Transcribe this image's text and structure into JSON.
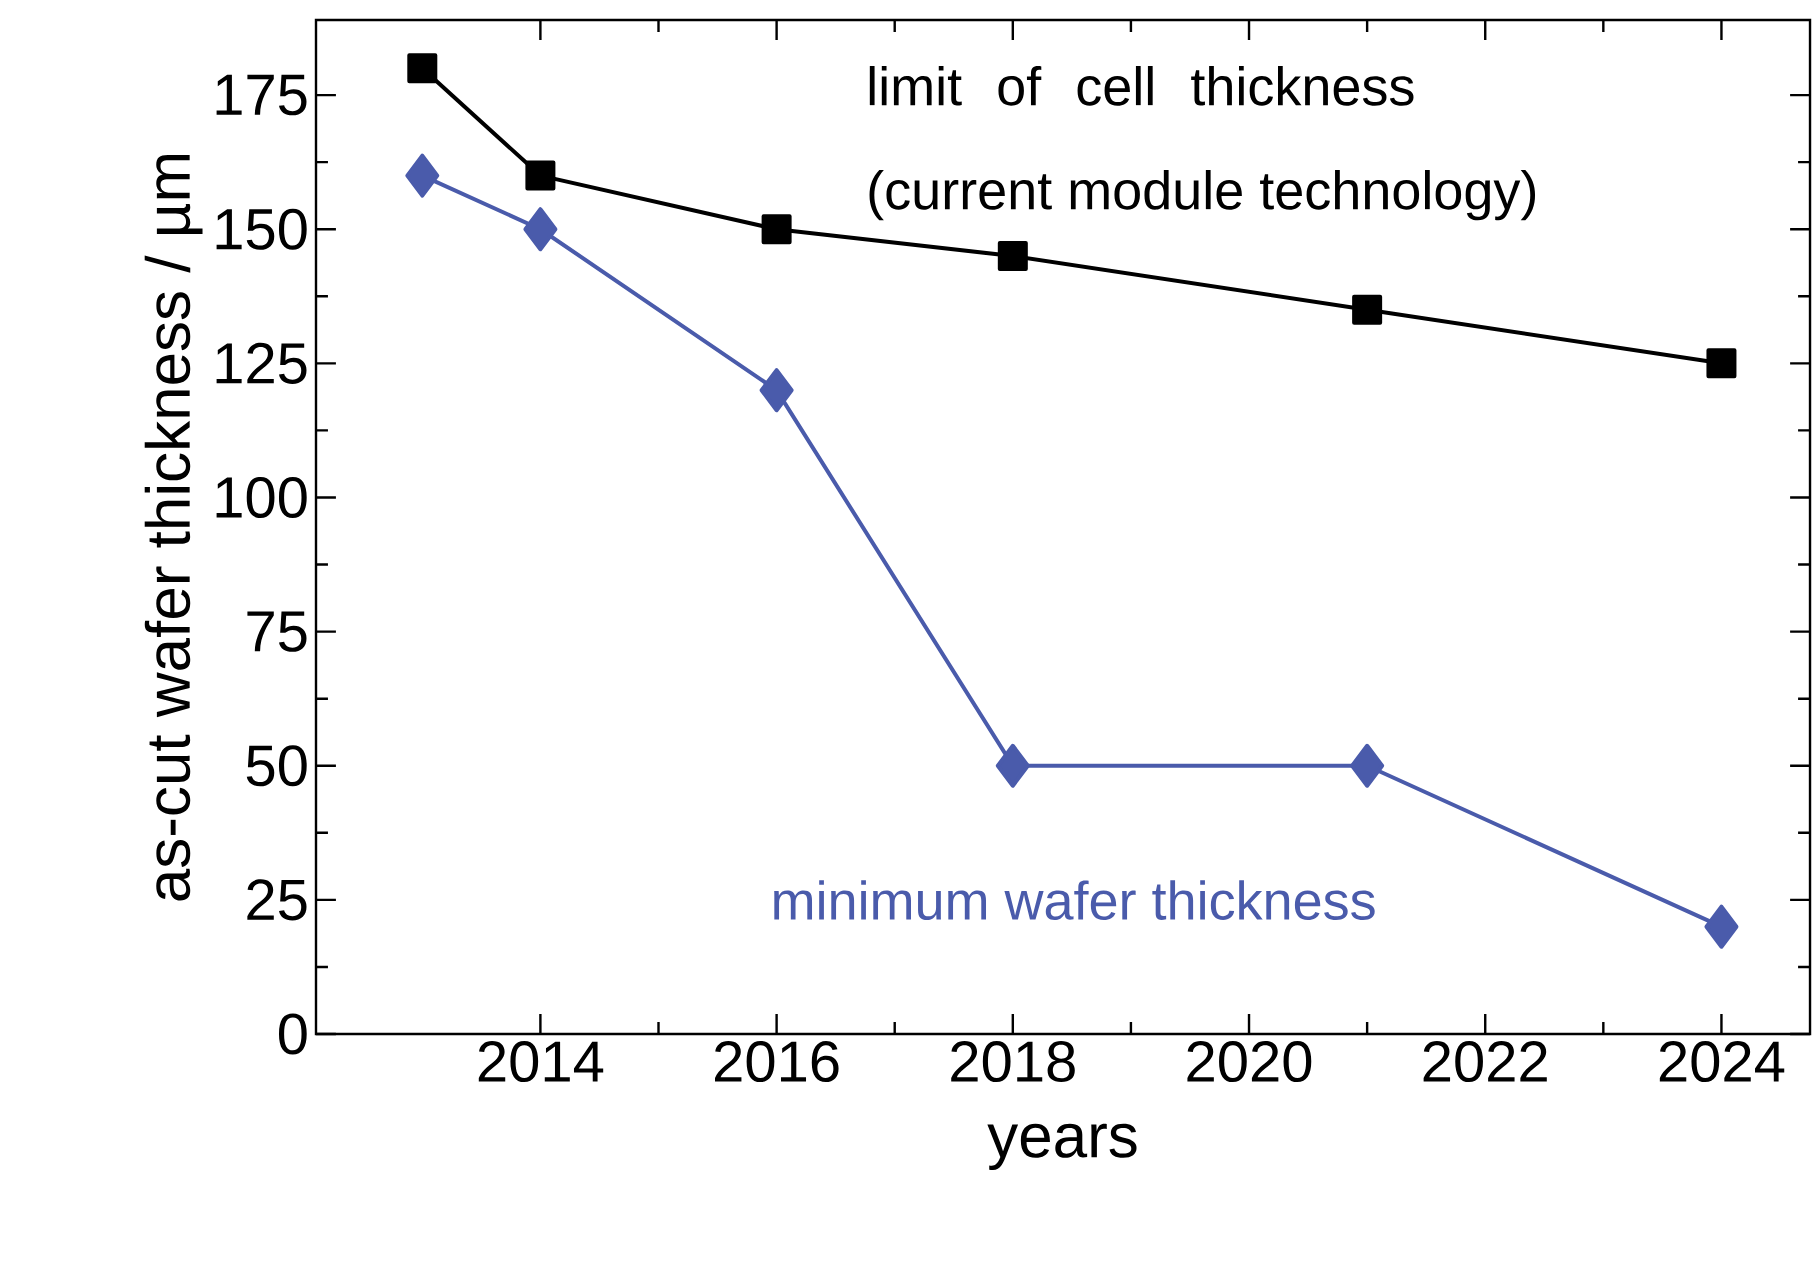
{
  "chart_data": {
    "type": "line",
    "xlabel": "years",
    "ylabel": "as-cut wafer thickness / µm",
    "xlim": [
      2012.1,
      2024.75
    ],
    "ylim": [
      0,
      189
    ],
    "xticks": [
      2014,
      2016,
      2018,
      2020,
      2022,
      2024
    ],
    "yticks": [
      0,
      25,
      50,
      75,
      100,
      125,
      150,
      175
    ],
    "grid": false,
    "legend": "top right",
    "line_style": "solid",
    "series": [
      {
        "name": "limit of cell thickness (current module technology)",
        "color": "#000000",
        "marker": "square",
        "x": [
          2013,
          2014,
          2016,
          2018,
          2021,
          2024
        ],
        "values": [
          180,
          160,
          150,
          145,
          135,
          125
        ]
      },
      {
        "name": "minimum wafer thickness",
        "color": "#4a5bab",
        "marker": "diamond",
        "x": [
          2013,
          2014,
          2016,
          2018,
          2021,
          2024
        ],
        "values": [
          160,
          150,
          120,
          50,
          50,
          20
        ]
      }
    ]
  }
}
